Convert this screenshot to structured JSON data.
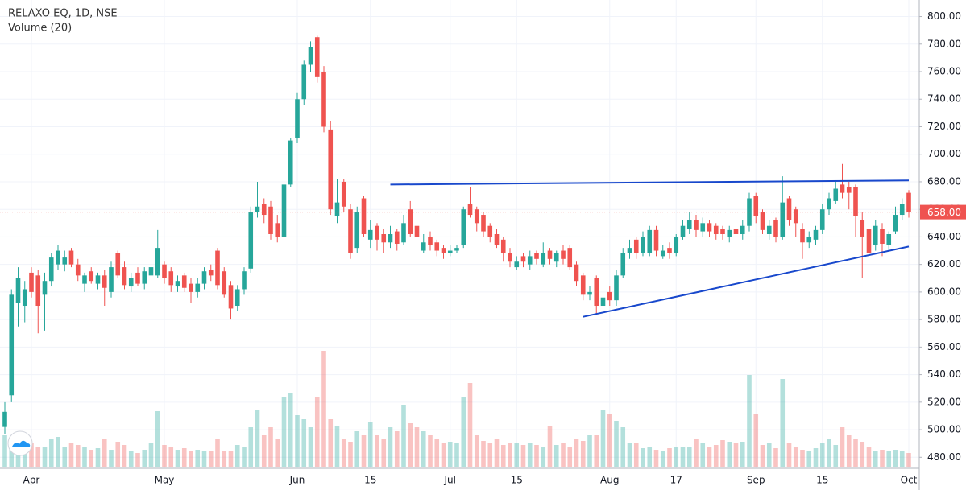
{
  "chart_data": {
    "type": "candlestick",
    "title": "RELAXO EQ, 1D, NSE",
    "subtitle": "Volume (20)",
    "up_color": "#26a69a",
    "down_color": "#ef5350",
    "grid": true,
    "categories": [
      null,
      null,
      null,
      null,
      "Apr",
      null,
      null,
      null,
      null,
      null,
      null,
      null,
      null,
      null,
      null,
      null,
      null,
      null,
      null,
      null,
      null,
      null,
      null,
      null,
      "May",
      null,
      null,
      null,
      null,
      null,
      null,
      null,
      null,
      null,
      null,
      null,
      null,
      null,
      null,
      null,
      null,
      null,
      null,
      null,
      "Jun",
      null,
      null,
      null,
      null,
      null,
      null,
      null,
      null,
      null,
      null,
      "15",
      null,
      null,
      null,
      null,
      null,
      null,
      null,
      null,
      null,
      null,
      null,
      "Jul",
      null,
      null,
      null,
      null,
      null,
      null,
      null,
      null,
      null,
      "15",
      null,
      null,
      null,
      null,
      null,
      null,
      null,
      null,
      null,
      null,
      null,
      null,
      null,
      "Aug",
      null,
      null,
      null,
      null,
      null,
      null,
      null,
      null,
      null,
      "17",
      null,
      null,
      null,
      null,
      null,
      null,
      null,
      null,
      null,
      null,
      null,
      "Sep",
      null,
      null,
      null,
      null,
      null,
      null,
      null,
      null,
      null,
      "15",
      null,
      null,
      null,
      null,
      null,
      null,
      null,
      null,
      null,
      null,
      null,
      null,
      "Oct"
    ],
    "open": [
      502,
      525,
      592,
      590,
      614,
      612,
      598,
      608,
      620,
      620,
      630,
      620,
      606,
      615,
      606,
      612,
      600,
      628,
      618,
      604,
      614,
      606,
      612,
      612,
      620,
      615,
      604,
      612,
      606,
      600,
      606,
      616,
      630,
      615,
      605,
      590,
      602,
      617,
      658,
      664,
      662,
      650,
      640,
      678,
      712,
      740,
      765,
      785,
      760,
      718,
      655,
      680,
      660,
      632,
      668,
      638,
      648,
      642,
      636,
      644,
      636,
      660,
      648,
      630,
      640,
      636,
      632,
      628,
      630,
      634,
      664,
      660,
      656,
      648,
      642,
      638,
      628,
      618,
      626,
      620,
      628,
      620,
      630,
      622,
      630,
      632,
      620,
      612,
      598,
      610,
      590,
      600,
      594,
      612,
      628,
      638,
      628,
      628,
      645,
      626,
      632,
      628,
      640,
      646,
      652,
      644,
      650,
      648,
      646,
      640,
      646,
      642,
      648,
      670,
      658,
      642,
      652,
      640,
      668,
      660,
      646,
      636,
      638,
      645,
      660,
      666,
      678,
      676,
      676,
      652,
      646,
      634,
      646,
      634,
      644,
      656,
      672
    ],
    "high": [
      520,
      602,
      618,
      608,
      618,
      616,
      614,
      628,
      634,
      630,
      632,
      624,
      614,
      618,
      614,
      616,
      622,
      630,
      622,
      614,
      618,
      618,
      622,
      645,
      622,
      618,
      612,
      614,
      610,
      610,
      618,
      620,
      632,
      618,
      608,
      605,
      618,
      662,
      680,
      668,
      666,
      656,
      682,
      712,
      745,
      768,
      782,
      786,
      764,
      724,
      682,
      682,
      664,
      662,
      670,
      652,
      650,
      646,
      648,
      646,
      656,
      666,
      650,
      642,
      644,
      638,
      634,
      634,
      634,
      662,
      676,
      662,
      658,
      650,
      646,
      640,
      632,
      626,
      628,
      630,
      630,
      636,
      632,
      630,
      634,
      634,
      622,
      614,
      604,
      612,
      600,
      604,
      616,
      632,
      638,
      640,
      644,
      648,
      648,
      634,
      636,
      642,
      652,
      658,
      656,
      654,
      652,
      650,
      648,
      648,
      650,
      652,
      672,
      672,
      660,
      652,
      654,
      684,
      670,
      662,
      650,
      644,
      648,
      664,
      672,
      680,
      693,
      680,
      678,
      658,
      650,
      652,
      650,
      644,
      662,
      668,
      674
    ],
    "low": [
      497,
      520,
      575,
      578,
      596,
      570,
      572,
      604,
      616,
      615,
      618,
      608,
      600,
      606,
      602,
      590,
      596,
      610,
      602,
      600,
      604,
      602,
      608,
      610,
      606,
      600,
      600,
      600,
      592,
      596,
      602,
      608,
      602,
      596,
      580,
      586,
      598,
      614,
      654,
      650,
      638,
      636,
      638,
      676,
      708,
      736,
      760,
      752,
      716,
      656,
      650,
      658,
      624,
      628,
      640,
      632,
      630,
      628,
      632,
      630,
      634,
      640,
      634,
      628,
      630,
      626,
      624,
      626,
      628,
      632,
      654,
      644,
      640,
      636,
      632,
      622,
      618,
      616,
      618,
      616,
      620,
      618,
      620,
      618,
      620,
      616,
      604,
      594,
      594,
      584,
      578,
      590,
      590,
      610,
      624,
      624,
      626,
      626,
      626,
      624,
      624,
      626,
      638,
      642,
      640,
      640,
      640,
      638,
      638,
      636,
      640,
      638,
      644,
      650,
      642,
      638,
      636,
      638,
      648,
      640,
      624,
      632,
      634,
      642,
      656,
      664,
      668,
      660,
      640,
      610,
      626,
      630,
      626,
      630,
      642,
      652,
      654
    ],
    "close": [
      513,
      598,
      610,
      602,
      600,
      590,
      608,
      625,
      630,
      625,
      620,
      612,
      612,
      608,
      612,
      603,
      618,
      612,
      605,
      610,
      606,
      615,
      618,
      632,
      610,
      605,
      608,
      603,
      600,
      606,
      615,
      612,
      605,
      598,
      588,
      602,
      615,
      658,
      662,
      656,
      642,
      640,
      678,
      710,
      740,
      765,
      778,
      756,
      720,
      660,
      665,
      662,
      628,
      658,
      642,
      645,
      638,
      636,
      642,
      635,
      650,
      642,
      640,
      636,
      634,
      630,
      628,
      630,
      632,
      660,
      656,
      650,
      644,
      640,
      634,
      628,
      622,
      622,
      622,
      626,
      624,
      628,
      624,
      628,
      624,
      618,
      608,
      598,
      600,
      590,
      596,
      594,
      612,
      628,
      632,
      628,
      640,
      645,
      630,
      630,
      628,
      640,
      648,
      652,
      645,
      650,
      644,
      642,
      642,
      645,
      642,
      648,
      668,
      655,
      645,
      648,
      640,
      665,
      652,
      650,
      636,
      640,
      645,
      660,
      668,
      675,
      672,
      672,
      655,
      640,
      628,
      648,
      635,
      642,
      656,
      664,
      658
    ],
    "volume": [
      40,
      30,
      25,
      20,
      30,
      25,
      25,
      35,
      38,
      25,
      30,
      28,
      25,
      22,
      24,
      35,
      22,
      32,
      28,
      20,
      18,
      22,
      30,
      70,
      28,
      26,
      22,
      24,
      20,
      22,
      20,
      20,
      35,
      20,
      20,
      28,
      26,
      50,
      72,
      40,
      50,
      35,
      88,
      92,
      65,
      60,
      50,
      88,
      145,
      60,
      52,
      36,
      32,
      45,
      40,
      56,
      40,
      36,
      50,
      45,
      78,
      55,
      50,
      45,
      40,
      35,
      30,
      32,
      30,
      88,
      105,
      40,
      33,
      30,
      36,
      28,
      30,
      30,
      28,
      30,
      28,
      26,
      52,
      28,
      30,
      26,
      36,
      33,
      40,
      40,
      72,
      66,
      58,
      50,
      30,
      30,
      24,
      26,
      22,
      20,
      24,
      26,
      25,
      25,
      36,
      30,
      26,
      28,
      34,
      32,
      30,
      32,
      115,
      66,
      28,
      30,
      24,
      110,
      30,
      25,
      22,
      20,
      24,
      30,
      36,
      28,
      50,
      40,
      36,
      32,
      25,
      20,
      22,
      20,
      22,
      20,
      18
    ],
    "ylim": [
      472,
      812
    ],
    "yticks": [
      {
        "value": 480,
        "label": "480.00"
      },
      {
        "value": 500,
        "label": "500.00"
      },
      {
        "value": 520,
        "label": "520.00"
      },
      {
        "value": 540,
        "label": "540.00"
      },
      {
        "value": 560,
        "label": "560.00"
      },
      {
        "value": 580,
        "label": "580.00"
      },
      {
        "value": 600,
        "label": "600.00"
      },
      {
        "value": 620,
        "label": "620.00"
      },
      {
        "value": 640,
        "label": "640.00"
      },
      {
        "value": 660,
        "label": "660.00"
      },
      {
        "value": 680,
        "label": "680.00"
      },
      {
        "value": 700,
        "label": "700.00"
      },
      {
        "value": 720,
        "label": "720.00"
      },
      {
        "value": 740,
        "label": "740.00"
      },
      {
        "value": 760,
        "label": "760.00"
      },
      {
        "value": 780,
        "label": "780.00"
      },
      {
        "value": 800,
        "label": "800.00"
      }
    ],
    "last": {
      "value": 658,
      "label": "658.00",
      "color": "#ef5350"
    },
    "trendlines": [
      {
        "x": [
          58,
          136
        ],
        "y": [
          678,
          681
        ],
        "color": "#1848cc"
      },
      {
        "x": [
          87,
          136
        ],
        "y": [
          582,
          633
        ],
        "color": "#1848cc"
      }
    ]
  }
}
